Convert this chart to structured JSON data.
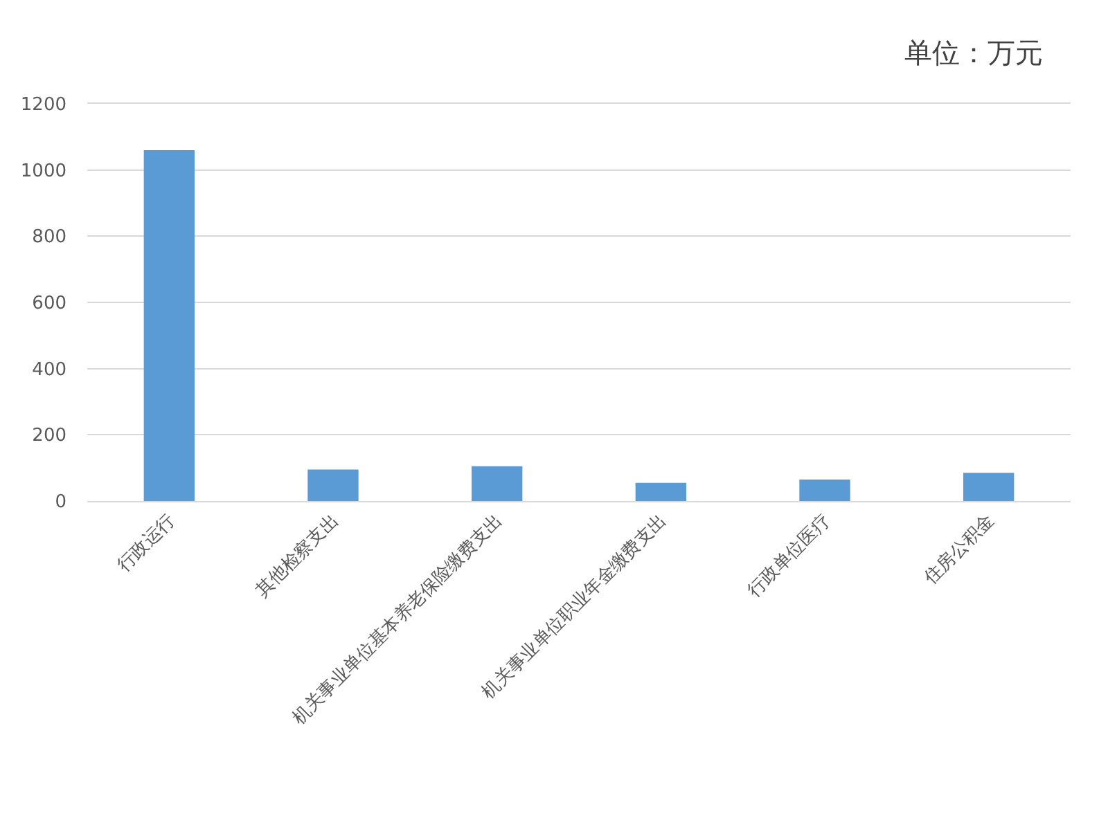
{
  "chart_data": {
    "type": "bar",
    "categories": [
      "行政运行",
      "其他检察支出",
      "机关事业单位基本养老保险缴费支出",
      "机关事业单位职业年金缴费支出",
      "行政单位医疗",
      "住房公积金"
    ],
    "values": [
      1060,
      95,
      105,
      55,
      65,
      85
    ],
    "color": "#5b9bd5",
    "ylim": [
      0,
      1200
    ],
    "yticks": [
      0,
      200,
      400,
      600,
      800,
      1000,
      1200
    ],
    "grid": "y",
    "annotations": [
      "单位：万元"
    ]
  }
}
